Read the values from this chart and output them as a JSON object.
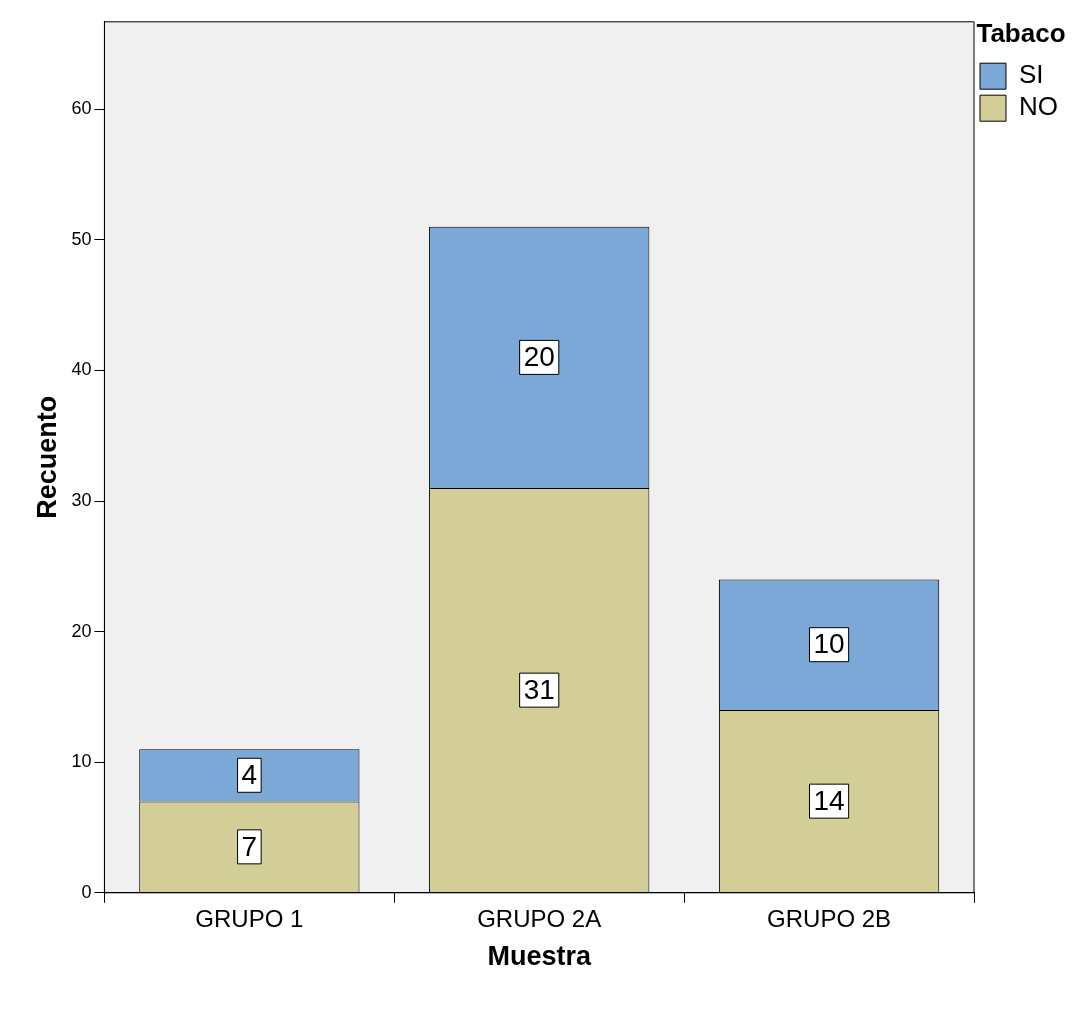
{
  "chart_data": {
    "type": "bar",
    "stacked": true,
    "xlabel": "Muestra",
    "ylabel": "Recuento",
    "legend_title": "Tabaco",
    "categories": [
      "GRUPO 1",
      "GRUPO 2A",
      "GRUPO 2B"
    ],
    "series": [
      {
        "name": "NO",
        "color": "#d3ce98",
        "values": [
          7,
          31,
          14
        ]
      },
      {
        "name": "SI",
        "color": "#7ba8d6",
        "values": [
          4,
          20,
          10
        ]
      }
    ],
    "ylim": [
      0,
      66.7
    ],
    "yticks": [
      0,
      10,
      20,
      30,
      40,
      50,
      60
    ],
    "grid": false,
    "legend": "top right",
    "data_labels": true
  }
}
